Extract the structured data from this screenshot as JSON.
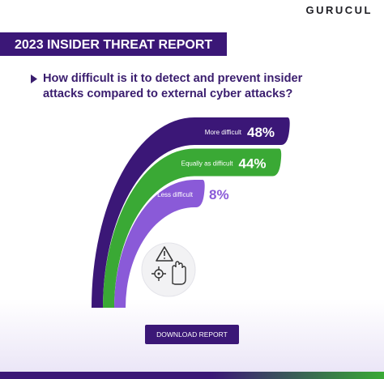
{
  "brand": "GURUCUL",
  "banner": "2023 INSIDER THREAT REPORT",
  "button": "DOWNLOAD REPORT",
  "chart_data": {
    "type": "curved-bar",
    "title": "How difficult is it to detect and prevent insider attacks compared to external cyber attacks?",
    "categories": [
      "More difficult",
      "Equally as difficult",
      "Less difficult"
    ],
    "values": [
      48,
      44,
      8
    ],
    "value_labels": [
      "48%",
      "44%",
      "8%"
    ],
    "colors": [
      "#3b1777",
      "#3aa935",
      "#8a5ad8"
    ]
  }
}
